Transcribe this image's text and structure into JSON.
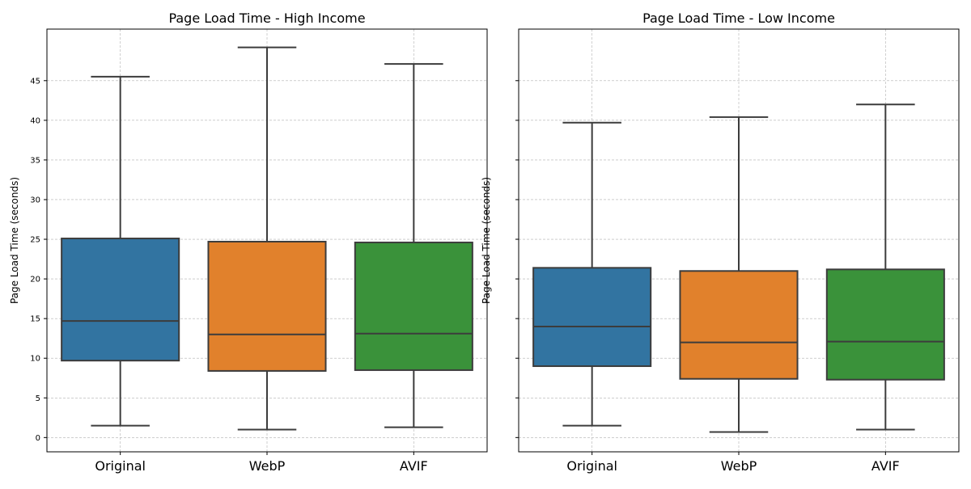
{
  "chart_data": [
    {
      "type": "box",
      "title": "Page Load Time - High Income",
      "ylabel": "Page Load Time (seconds)",
      "xlabel": "",
      "ylim": [
        -1.8,
        51.5
      ],
      "yticks": [
        0,
        5,
        10,
        15,
        20,
        25,
        30,
        35,
        40,
        45
      ],
      "show_ytick_labels": true,
      "grid": true,
      "categories": [
        "Original",
        "WebP",
        "AVIF"
      ],
      "colors": [
        "#3274a1",
        "#e1812c",
        "#3a923a"
      ],
      "boxes": [
        {
          "whisker_low": 1.5,
          "q1": 9.7,
          "median": 14.7,
          "q3": 25.1,
          "whisker_high": 45.5
        },
        {
          "whisker_low": 1.0,
          "q1": 8.4,
          "median": 13.0,
          "q3": 24.7,
          "whisker_high": 49.2
        },
        {
          "whisker_low": 1.3,
          "q1": 8.5,
          "median": 13.1,
          "q3": 24.6,
          "whisker_high": 47.1
        }
      ]
    },
    {
      "type": "box",
      "title": "Page Load Time - Low Income",
      "ylabel": "Page Load Time (seconds)",
      "xlabel": "",
      "ylim": [
        -1.8,
        51.5
      ],
      "yticks": [
        0,
        5,
        10,
        15,
        20,
        25,
        30,
        35,
        40,
        45
      ],
      "show_ytick_labels": false,
      "grid": true,
      "categories": [
        "Original",
        "WebP",
        "AVIF"
      ],
      "colors": [
        "#3274a1",
        "#e1812c",
        "#3a923a"
      ],
      "boxes": [
        {
          "whisker_low": 1.5,
          "q1": 9.0,
          "median": 14.0,
          "q3": 21.4,
          "whisker_high": 39.7
        },
        {
          "whisker_low": 0.7,
          "q1": 7.4,
          "median": 12.0,
          "q3": 21.0,
          "whisker_high": 40.4
        },
        {
          "whisker_low": 1.0,
          "q1": 7.3,
          "median": 12.1,
          "q3": 21.2,
          "whisker_high": 42.0
        }
      ]
    }
  ]
}
